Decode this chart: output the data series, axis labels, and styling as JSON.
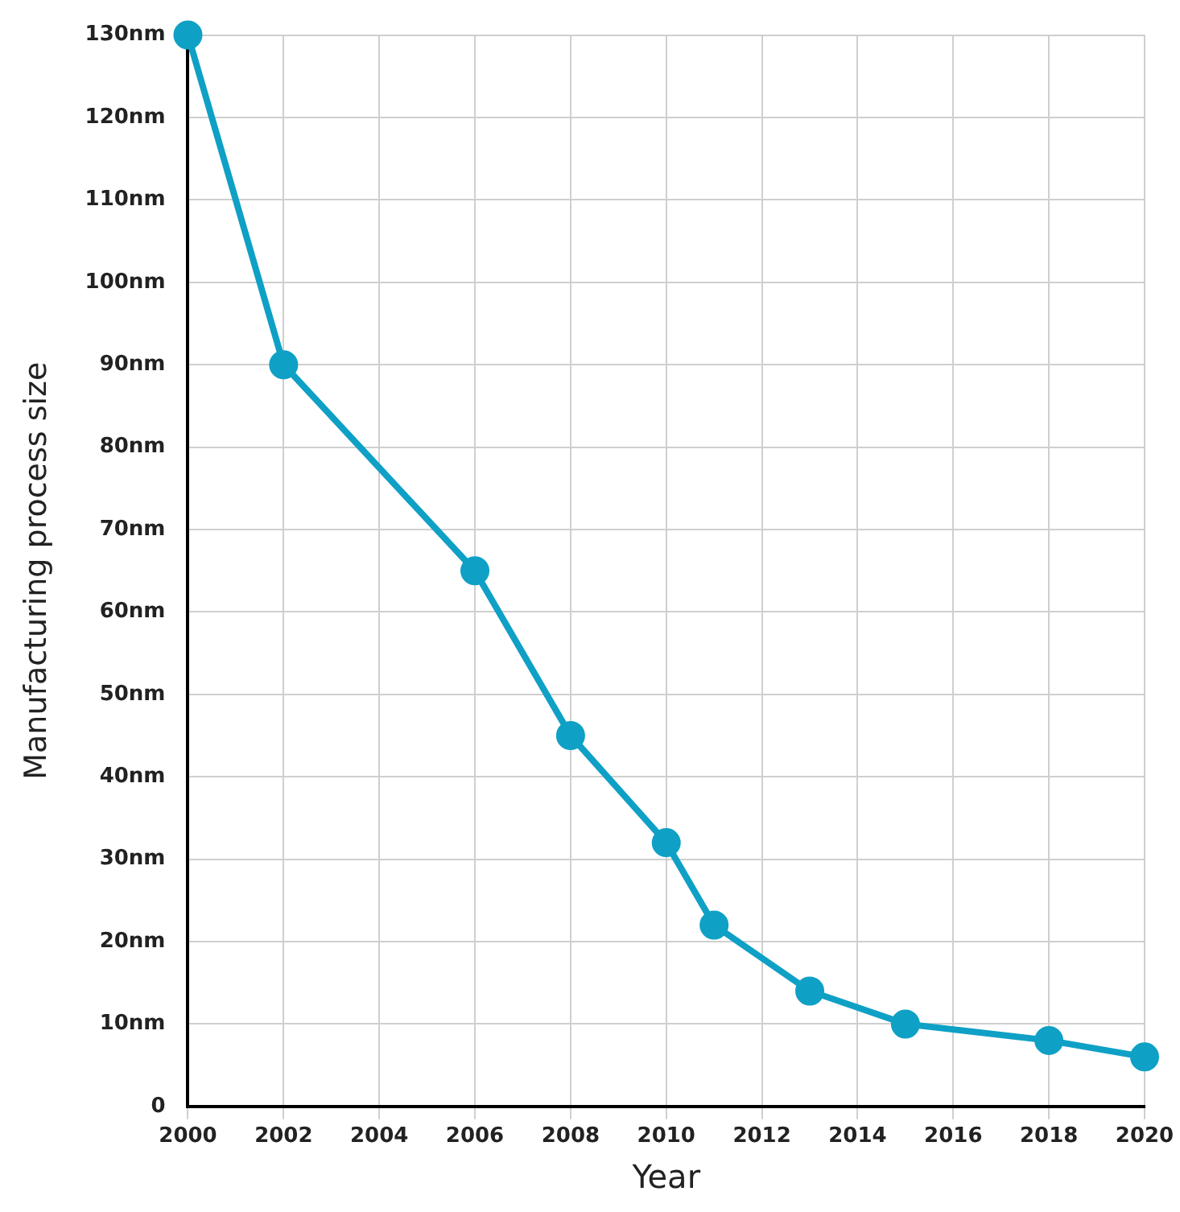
{
  "chart_data": {
    "type": "line",
    "xlabel": "Year",
    "ylabel": "Manufacturing process size",
    "x": [
      2000,
      2002,
      2006,
      2008,
      2010,
      2011,
      2013,
      2015,
      2018,
      2020
    ],
    "series": [
      {
        "color": "#0fa0c6",
        "values": [
          130,
          90,
          65,
          45,
          32,
          22,
          14,
          10,
          8,
          6
        ]
      }
    ],
    "xlim": [
      2000,
      2020
    ],
    "xticks": [
      2000,
      2002,
      2004,
      2006,
      2008,
      2010,
      2012,
      2014,
      2016,
      2018,
      2020
    ],
    "ylim": [
      0,
      130
    ],
    "yticks": [
      0,
      {
        "value": 10,
        "label": "10nm"
      },
      {
        "value": 20,
        "label": "20nm"
      },
      {
        "value": 30,
        "label": "30nm"
      },
      {
        "value": 40,
        "label": "40nm"
      },
      {
        "value": 50,
        "label": "50nm"
      },
      {
        "value": 60,
        "label": "60nm"
      },
      {
        "value": 70,
        "label": "70nm"
      },
      {
        "value": 80,
        "label": "80nm"
      },
      {
        "value": 90,
        "label": "90nm"
      },
      {
        "value": 100,
        "label": "100nm"
      },
      {
        "value": 110,
        "label": "110nm"
      },
      {
        "value": 120,
        "label": "120nm"
      },
      {
        "value": 130,
        "label": "130nm"
      }
    ],
    "grid": true,
    "legend": false,
    "marker": "circle",
    "line_style": "solid"
  }
}
